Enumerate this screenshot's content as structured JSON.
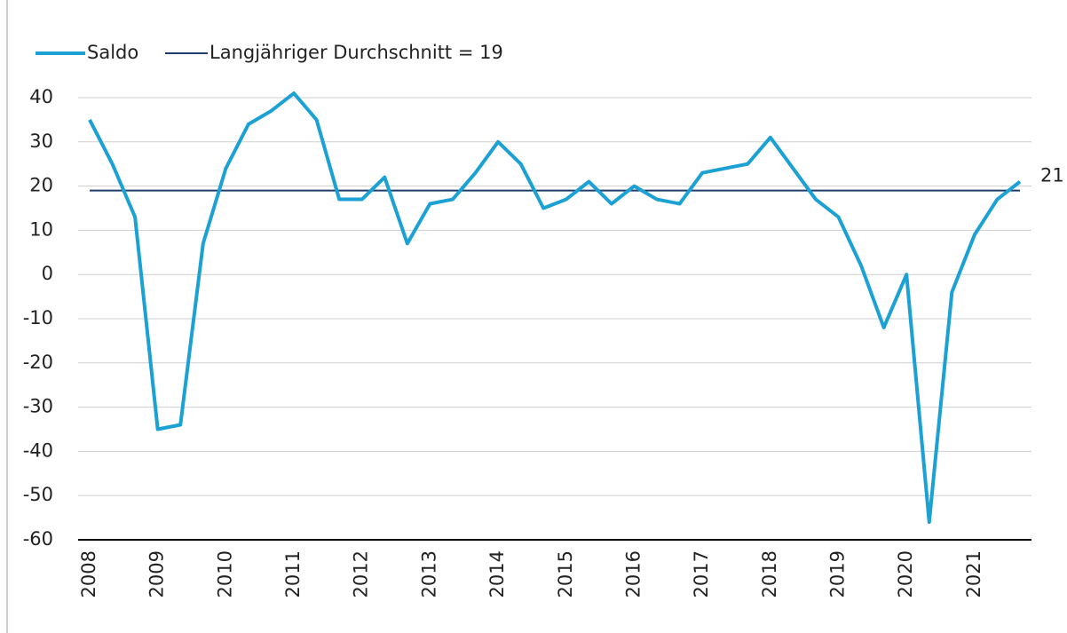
{
  "chart_data": {
    "type": "line",
    "categories": [
      "2008",
      null,
      null,
      "2009",
      null,
      null,
      "2010",
      null,
      null,
      "2011",
      null,
      null,
      "2012",
      null,
      null,
      "2013",
      null,
      null,
      "2014",
      null,
      null,
      "2015",
      null,
      null,
      "2016",
      null,
      null,
      "2017",
      null,
      null,
      "2018",
      null,
      null,
      "2019",
      null,
      null,
      "2020",
      null,
      null,
      "2021",
      null,
      null
    ],
    "series": [
      {
        "name": "Saldo",
        "color": "#1ba1d3",
        "values": [
          35,
          25,
          13,
          -35,
          -34,
          7,
          24,
          34,
          37,
          41,
          35,
          17,
          17,
          22,
          7,
          16,
          17,
          23,
          30,
          25,
          15,
          17,
          21,
          16,
          20,
          17,
          16,
          23,
          24,
          25,
          31,
          24,
          17,
          13,
          2,
          -12,
          0,
          -56,
          -4,
          9,
          17,
          21
        ]
      }
    ],
    "reference_line": {
      "name": "Langjähriger Durchschnitt = 19",
      "value": 19,
      "color": "#1e3d6b"
    },
    "ylim": [
      -60,
      40
    ],
    "yticks": [
      -60,
      -50,
      -40,
      -30,
      -20,
      -10,
      0,
      10,
      20,
      30,
      40
    ],
    "grid": true
  }
}
